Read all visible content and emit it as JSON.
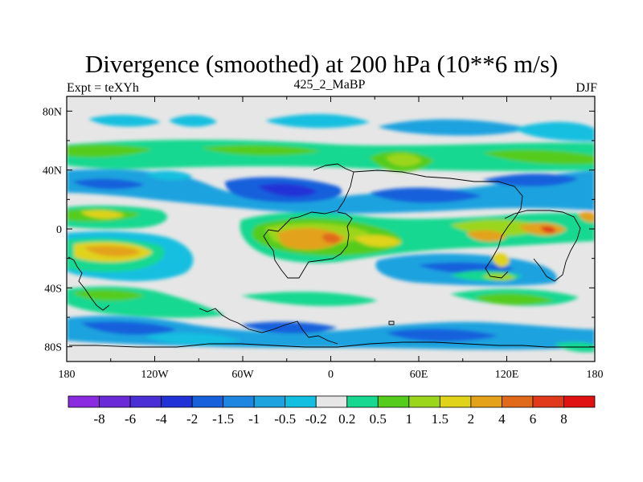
{
  "title": "Divergence (smoothed) at 200 hPa (10**6 m/s)",
  "left_label": "Expt = teXYh",
  "center_label": "425_2_MaBP",
  "right_label": "DJF",
  "map": {
    "lon_range": [
      -180,
      180
    ],
    "lat_range": [
      -90,
      90
    ],
    "lat_ticks": [
      {
        "value": 80,
        "label": "80N"
      },
      {
        "value": 40,
        "label": "40N"
      },
      {
        "value": 0,
        "label": "0"
      },
      {
        "value": -40,
        "label": "40S"
      },
      {
        "value": -80,
        "label": "80S"
      }
    ],
    "lon_ticks": [
      {
        "value": -180,
        "label": "180"
      },
      {
        "value": -120,
        "label": "120W"
      },
      {
        "value": -60,
        "label": "60W"
      },
      {
        "value": 0,
        "label": "0"
      },
      {
        "value": 60,
        "label": "60E"
      },
      {
        "value": 120,
        "label": "120E"
      },
      {
        "value": 180,
        "label": "180"
      }
    ]
  },
  "colorbar": {
    "labels": [
      "-8",
      "-6",
      "-4",
      "-2",
      "-1.5",
      "-1",
      "-0.5",
      "-0.2",
      "0.2",
      "0.5",
      "1",
      "1.5",
      "2",
      "4",
      "6",
      "8"
    ],
    "colors": [
      "#8a2be2",
      "#6a2ad8",
      "#4b2fd6",
      "#2132d6",
      "#1660dc",
      "#1c86e0",
      "#1ea3df",
      "#12bfe0",
      "#e6e6e6",
      "#16d890",
      "#54cc1c",
      "#9cd61a",
      "#e0d31a",
      "#e3a21a",
      "#e06a1a",
      "#e03a1a",
      "#e01212"
    ]
  }
}
